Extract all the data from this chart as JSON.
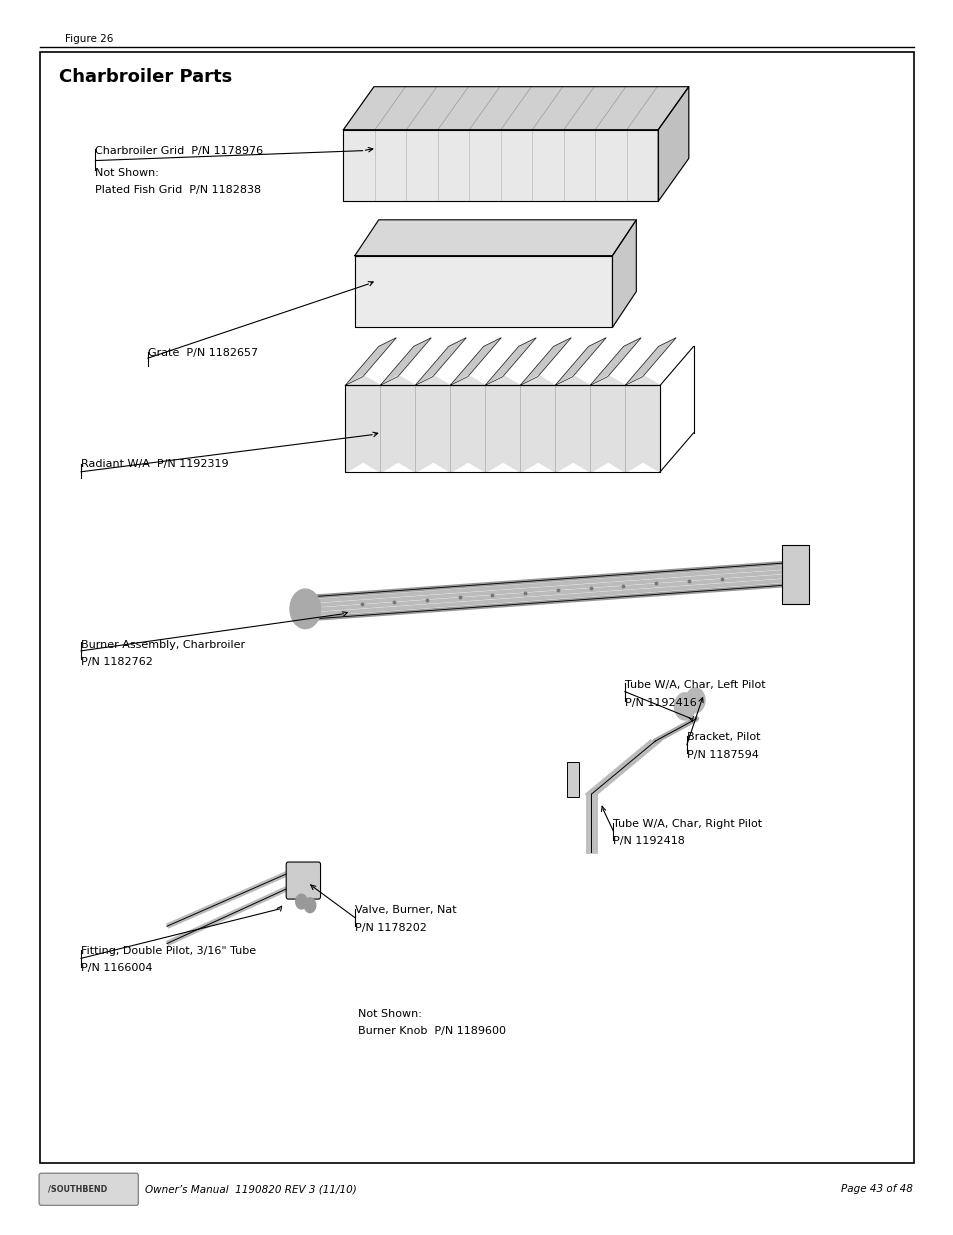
{
  "page_bg": "#ffffff",
  "figure_label": "Figure 26",
  "title": "Charbroiler Parts",
  "footer_left_logo": "/SOUTHBEND",
  "footer_left_text": "Owner’s Manual  1190820 REV 3 (11/10)",
  "footer_right": "Page 43 of 48",
  "grid_label1": "Charbroiler Grid  P/N 1178976",
  "grid_label2a": "Not Shown:",
  "grid_label2b": "Plated Fish Grid  P/N 1182838",
  "grate_label": "Grate  P/N 1182657",
  "radiant_label": "Radiant W/A  P/N 1192319",
  "burner_label1": "Burner Assembly, Charbroiler",
  "burner_label2": "P/N 1182762",
  "tube_left1": "Tube W/A, Char, Left Pilot",
  "tube_left2": "P/N 1192416",
  "bracket1": "Bracket, Pilot",
  "bracket2": "P/N 1187594",
  "tube_right1": "Tube W/A, Char, Right Pilot",
  "tube_right2": "P/N 1192418",
  "valve1": "Valve, Burner, Nat",
  "valve2": "P/N 1178202",
  "fitting1": "Fitting, Double Pilot, 3/16\" Tube",
  "fitting2": "P/N 1166004",
  "not_shown1": "Not Shown:",
  "not_shown2": "Burner Knob  P/N 1189600"
}
